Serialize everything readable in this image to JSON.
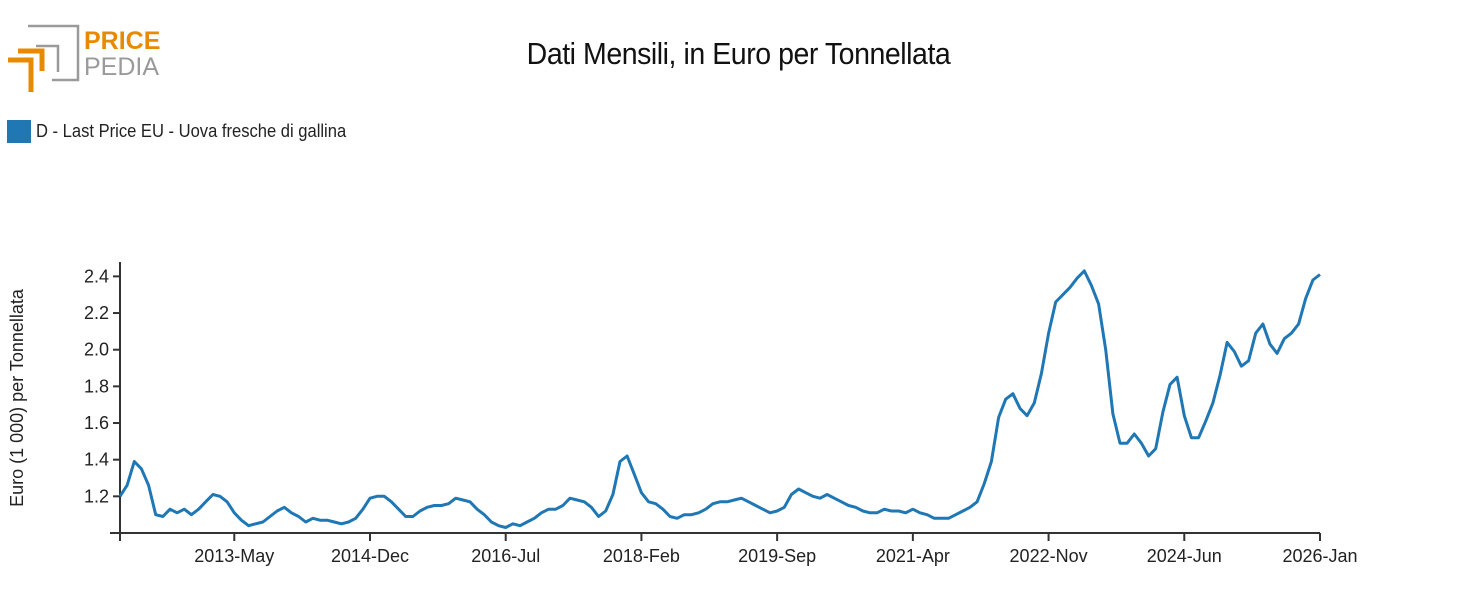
{
  "logo": {
    "text_top": "PRICE",
    "text_bottom": "PEDIA",
    "colors": {
      "orange": "#e88a00",
      "gray": "#9a9a9a"
    }
  },
  "header": {
    "title": "Dati Mensili, in Euro per Tonnellata"
  },
  "legend": {
    "label": "D - Last Price EU - Uova fresche di gallina",
    "color": "#1f77b4"
  },
  "chart_data": {
    "type": "line",
    "title": "Dati Mensili, in Euro per Tonnellata",
    "xlabel": "",
    "ylabel": "Euro (1 000) per Tonnellata",
    "ylim": [
      1.0,
      2.48
    ],
    "yticks": [
      "1.2",
      "1.4",
      "1.6",
      "1.8",
      "2.0",
      "2.2",
      "2.4"
    ],
    "x_start": "2012-Jan",
    "x_end": "2026-Jan",
    "xticks": [
      {
        "label": "2013-May",
        "index": 16
      },
      {
        "label": "2014-Dec",
        "index": 35
      },
      {
        "label": "2016-Jul",
        "index": 54
      },
      {
        "label": "2018-Feb",
        "index": 73
      },
      {
        "label": "2019-Sep",
        "index": 92
      },
      {
        "label": "2021-Apr",
        "index": 111
      },
      {
        "label": "2022-Nov",
        "index": 130
      },
      {
        "label": "2024-Jun",
        "index": 149
      },
      {
        "label": "2026-Jan",
        "index": 168
      }
    ],
    "grid": false,
    "legend_position": "top-left",
    "series": [
      {
        "name": "D - Last Price EU - Uova fresche di gallina",
        "color": "#1f77b4",
        "frequency": "monthly",
        "values": [
          1.2,
          1.26,
          1.39,
          1.35,
          1.26,
          1.1,
          1.09,
          1.13,
          1.11,
          1.13,
          1.1,
          1.13,
          1.17,
          1.21,
          1.2,
          1.17,
          1.11,
          1.07,
          1.04,
          1.05,
          1.06,
          1.09,
          1.12,
          1.14,
          1.11,
          1.09,
          1.06,
          1.08,
          1.07,
          1.07,
          1.06,
          1.05,
          1.06,
          1.08,
          1.13,
          1.19,
          1.2,
          1.2,
          1.17,
          1.13,
          1.09,
          1.09,
          1.12,
          1.14,
          1.15,
          1.15,
          1.16,
          1.19,
          1.18,
          1.17,
          1.13,
          1.1,
          1.06,
          1.04,
          1.03,
          1.05,
          1.04,
          1.06,
          1.08,
          1.11,
          1.13,
          1.13,
          1.15,
          1.19,
          1.18,
          1.17,
          1.14,
          1.09,
          1.12,
          1.21,
          1.39,
          1.42,
          1.32,
          1.22,
          1.17,
          1.16,
          1.13,
          1.09,
          1.08,
          1.1,
          1.1,
          1.11,
          1.13,
          1.16,
          1.17,
          1.17,
          1.18,
          1.19,
          1.17,
          1.15,
          1.13,
          1.11,
          1.12,
          1.14,
          1.21,
          1.24,
          1.22,
          1.2,
          1.19,
          1.21,
          1.19,
          1.17,
          1.15,
          1.14,
          1.12,
          1.11,
          1.11,
          1.13,
          1.12,
          1.12,
          1.11,
          1.13,
          1.11,
          1.1,
          1.08,
          1.08,
          1.08,
          1.1,
          1.12,
          1.14,
          1.17,
          1.27,
          1.39,
          1.63,
          1.73,
          1.76,
          1.68,
          1.64,
          1.71,
          1.87,
          2.09,
          2.26,
          2.3,
          2.34,
          2.39,
          2.43,
          2.35,
          2.25,
          2.0,
          1.65,
          1.49,
          1.49,
          1.54,
          1.49,
          1.42,
          1.46,
          1.66,
          1.81,
          1.85,
          1.64,
          1.52,
          1.52,
          1.61,
          1.71,
          1.86,
          2.04,
          1.99,
          1.91,
          1.94,
          2.09,
          2.14,
          2.03,
          1.98,
          2.06,
          2.09,
          2.14,
          2.28,
          2.38,
          2.41
        ]
      }
    ]
  }
}
